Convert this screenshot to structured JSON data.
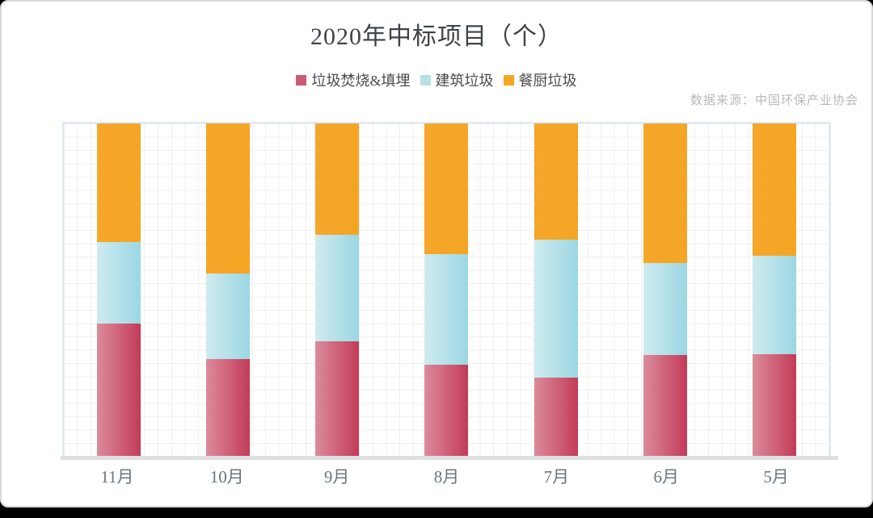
{
  "page": {
    "title": "2020年中标项目（个）",
    "source_note": "数据来源：中国环保产业协会"
  },
  "chart_data": {
    "type": "bar",
    "subtype": "100%-stacked-column",
    "title": "2020年中标项目（个）",
    "categories": [
      "11月",
      "10月",
      "9月",
      "8月",
      "7月",
      "6月",
      "5月"
    ],
    "series": [
      {
        "name": "垃圾焚烧&填埋",
        "legend_color": "#C95A72",
        "gradient": [
          "#DB8B9B",
          "#C33B59"
        ],
        "values_pct": [
          39.7,
          29.1,
          34.4,
          27.4,
          23.5,
          30.3,
          30.5
        ]
      },
      {
        "name": "建筑垃圾",
        "legend_color": "#B7E0E9",
        "gradient": [
          "#CFEBEF",
          "#9BD7E3"
        ],
        "values_pct": [
          24.7,
          25.7,
          32.2,
          33.4,
          41.6,
          27.8,
          29.8
        ]
      },
      {
        "name": "餐厨垃圾",
        "legend_color": "#F5A623",
        "gradient": [
          "#F5A72A",
          "#F4A524"
        ],
        "values_pct": [
          35.6,
          45.2,
          33.4,
          39.2,
          34.9,
          41.9,
          39.7
        ]
      }
    ],
    "stack_order": "bottom-to-top: 垃圾焚烧&填埋, 建筑垃圾, 餐厨垃圾",
    "ylim": [
      0,
      100
    ],
    "grid": true,
    "legend_position": "top"
  },
  "colors": {
    "card_background": "#ffffff",
    "card_border": "#d8d8d8",
    "page_background": "#000000",
    "plot_border": "#dde9f3",
    "gridline": "#efefef",
    "axis_band": "#dfdfdf",
    "title_text": "#3e4347",
    "legend_text": "#4a4a4a",
    "x_label_text": "#6b7580",
    "source_text": "#b9b9b9"
  }
}
